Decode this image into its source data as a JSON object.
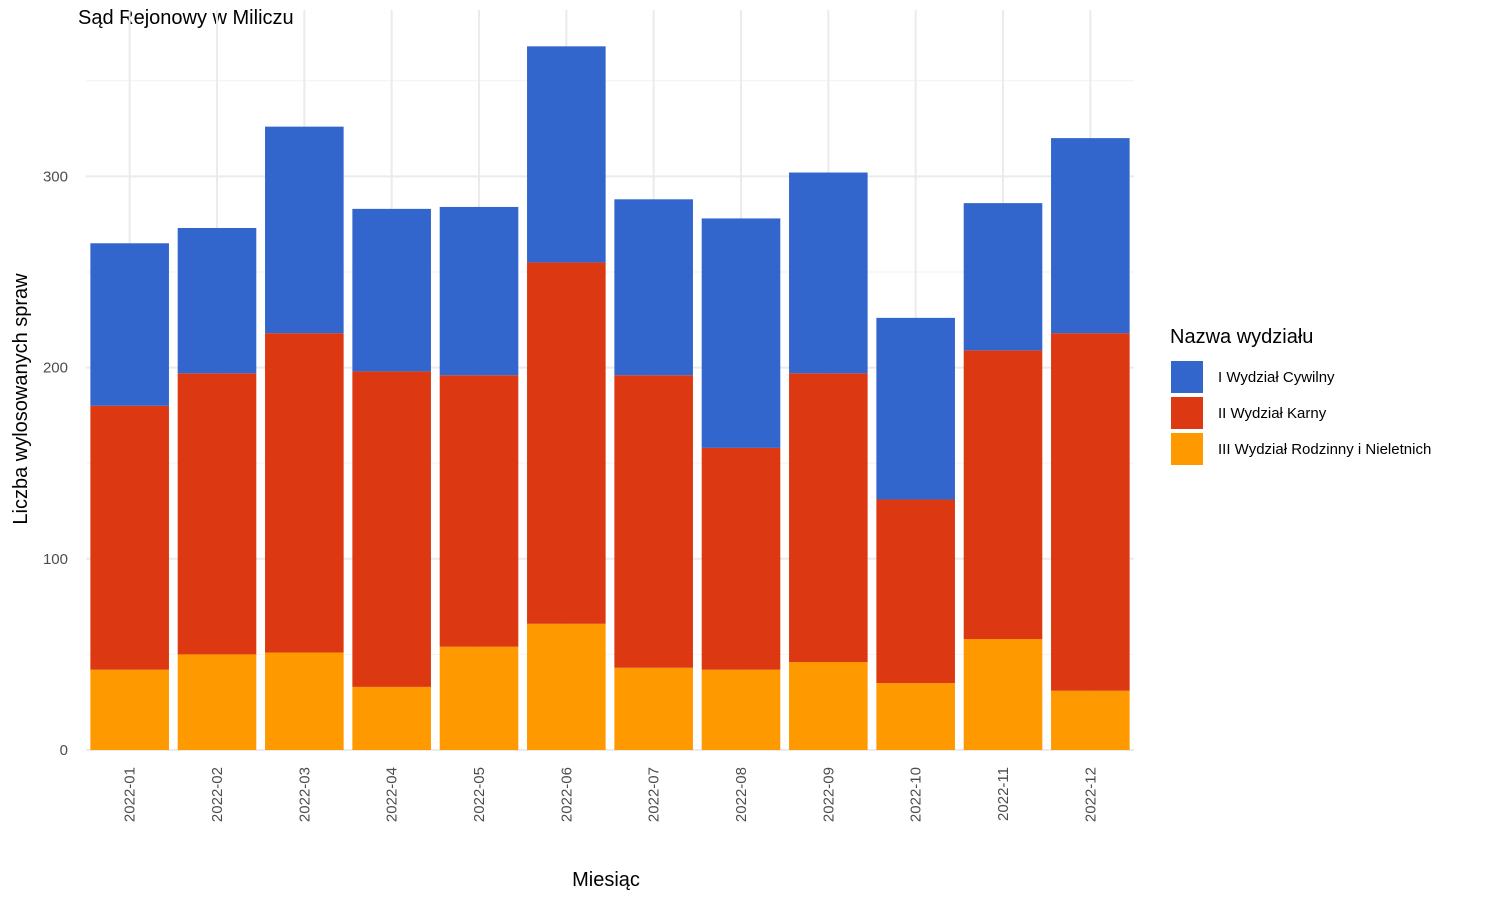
{
  "chart_data": {
    "type": "bar",
    "stacked": true,
    "title": "Sąd Rejonowy w Miliczu",
    "xlabel": "Miesiąc",
    "ylabel": "Liczba wylosowanych spraw",
    "ylim": [
      0,
      387
    ],
    "yticks": [
      0,
      100,
      200,
      300
    ],
    "categories": [
      "2022-01",
      "2022-02",
      "2022-03",
      "2022-04",
      "2022-05",
      "2022-06",
      "2022-07",
      "2022-08",
      "2022-09",
      "2022-10",
      "2022-11",
      "2022-12"
    ],
    "series": [
      {
        "name": "III Wydział Rodzinny i Nieletnich",
        "color": "#FF9900",
        "values": [
          42,
          50,
          51,
          33,
          54,
          66,
          43,
          42,
          46,
          35,
          58,
          31
        ]
      },
      {
        "name": "II Wydział Karny",
        "color": "#DC3912",
        "values": [
          138,
          147,
          167,
          165,
          142,
          189,
          153,
          116,
          151,
          96,
          151,
          187
        ]
      },
      {
        "name": "I Wydział Cywilny",
        "color": "#3366CC",
        "values": [
          85,
          76,
          108,
          85,
          88,
          113,
          92,
          120,
          105,
          95,
          77,
          102
        ]
      }
    ],
    "grid": true,
    "legend_position": "right",
    "legend_title": "Nazwa wydziału",
    "legend_order": [
      "I Wydział Cywilny",
      "II Wydział Karny",
      "III Wydział Rodzinny i Nieletnich"
    ]
  }
}
